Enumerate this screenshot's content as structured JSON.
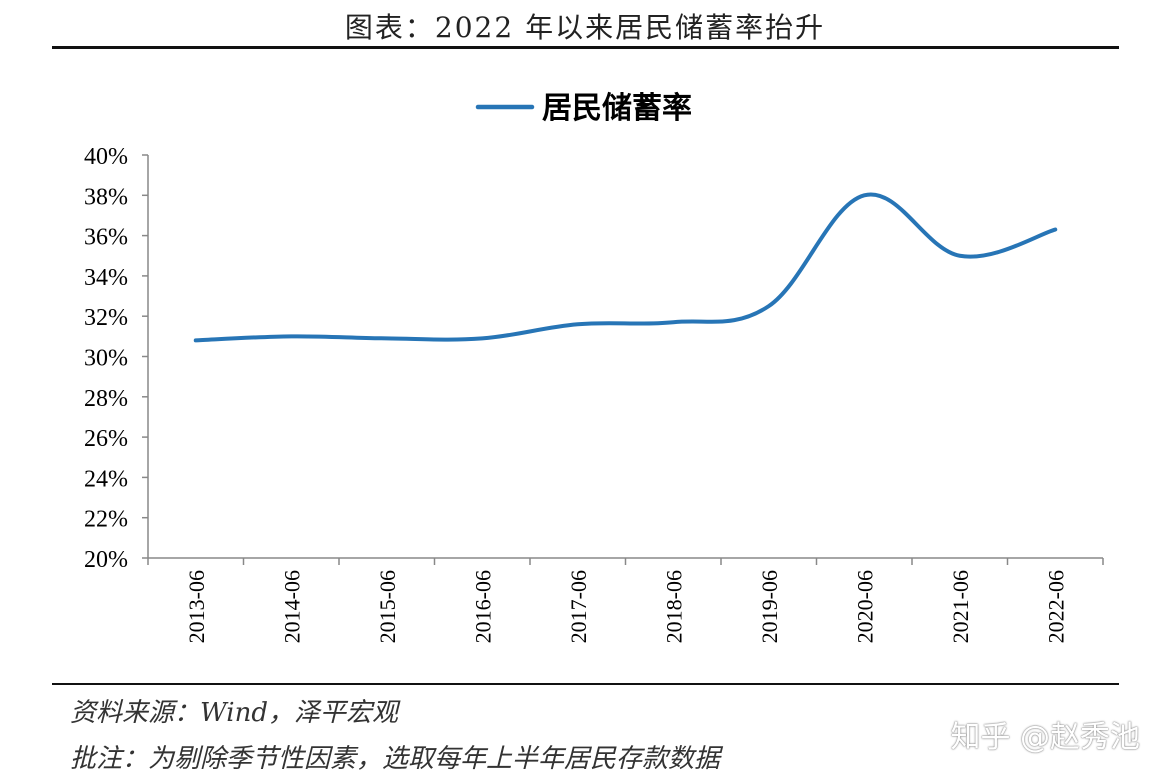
{
  "header": {
    "title": "图表：2022 年以来居民储蓄率抬升"
  },
  "footer": {
    "source": "资料来源：Wind，泽平宏观",
    "note": "批注：为剔除季节性因素，选取每年上半年居民存款数据"
  },
  "watermark": "知乎 @赵秀池",
  "colors": {
    "series": "#2775B6",
    "axis": "#888888",
    "text": "#000000"
  },
  "chart_data": {
    "type": "line",
    "title": "",
    "xlabel": "",
    "ylabel": "",
    "legend": "top-center",
    "grid": false,
    "categories": [
      "2013-06",
      "2014-06",
      "2015-06",
      "2016-06",
      "2017-06",
      "2018-06",
      "2019-06",
      "2020-06",
      "2021-06",
      "2022-06"
    ],
    "ylim": [
      20,
      40
    ],
    "yticks": [
      "20%",
      "22%",
      "24%",
      "26%",
      "28%",
      "30%",
      "32%",
      "34%",
      "36%",
      "38%",
      "40%"
    ],
    "series": [
      {
        "name": "居民储蓄率",
        "values": [
          30.8,
          31.0,
          30.9,
          30.9,
          31.6,
          31.7,
          32.5,
          38.0,
          35.0,
          36.3
        ]
      }
    ]
  }
}
